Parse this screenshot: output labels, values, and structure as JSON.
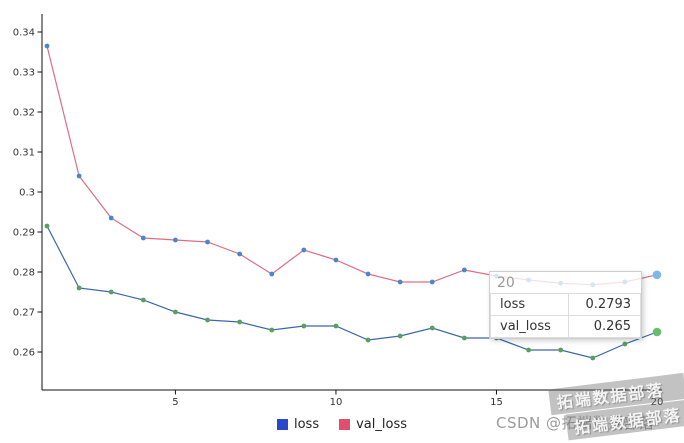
{
  "chart_data": {
    "type": "line",
    "x": [
      1,
      2,
      3,
      4,
      5,
      6,
      7,
      8,
      9,
      10,
      11,
      12,
      13,
      14,
      15,
      16,
      17,
      18,
      19,
      20
    ],
    "series": [
      {
        "name": "loss",
        "line_color": "#e06c84",
        "marker_color": "#4a86c8",
        "end_marker_color": "#7db8ea",
        "values": [
          0.3365,
          0.304,
          0.2935,
          0.2885,
          0.288,
          0.2875,
          0.2845,
          0.2795,
          0.2855,
          0.283,
          0.2795,
          0.2775,
          0.2775,
          0.2805,
          0.279,
          0.278,
          0.2772,
          0.2768,
          0.2775,
          0.2793
        ]
      },
      {
        "name": "val_loss",
        "line_color": "#3a66ad",
        "marker_color": "#55a05a",
        "end_marker_color": "#67bf6b",
        "values": [
          0.2915,
          0.276,
          0.275,
          0.273,
          0.27,
          0.268,
          0.2675,
          0.2655,
          0.2665,
          0.2665,
          0.263,
          0.264,
          0.266,
          0.2635,
          0.2635,
          0.2605,
          0.2605,
          0.2585,
          0.262,
          0.265
        ]
      }
    ],
    "title": "",
    "xlabel": "",
    "ylabel": "",
    "xlim": [
      1,
      20
    ],
    "x_ticks": [
      5,
      10,
      15,
      20
    ],
    "y_ticks": [
      0.26,
      0.27,
      0.28,
      0.29,
      0.3,
      0.31,
      0.32,
      0.33,
      0.34
    ],
    "grid": false,
    "legend_position": "bottom"
  },
  "tooltip": {
    "header": "20",
    "rows": [
      {
        "label": "loss",
        "value": "0.2793"
      },
      {
        "label": "val_loss",
        "value": "0.265"
      }
    ]
  },
  "legend": {
    "items": [
      {
        "label": "loss",
        "color": "#2c46c8"
      },
      {
        "label": "val_loss",
        "color": "#e0506e"
      }
    ]
  },
  "watermark": {
    "csdn_text": "CSDN @拓端数据部落",
    "stamp_text": "拓端数据部落"
  }
}
